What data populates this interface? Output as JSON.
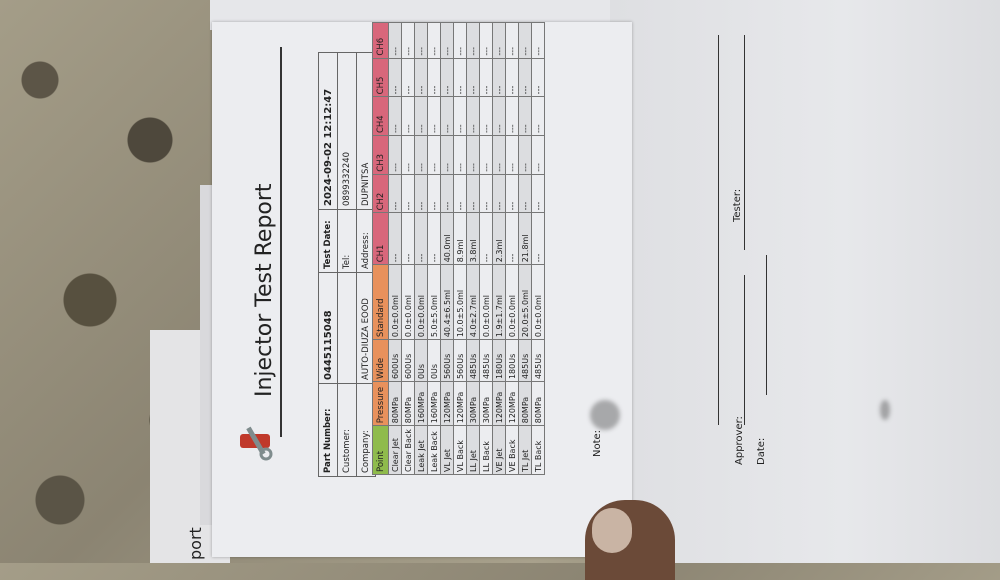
{
  "report": {
    "title": "Injector Test Report",
    "info": {
      "part_number_label": "Part Number:",
      "part_number": "0445115048",
      "test_date_label": "Test Date:",
      "test_date": "2024-09-02 12:12:47",
      "customer_label": "Customer:",
      "customer": "",
      "tel_label": "Tel:",
      "tel": "0899332240",
      "company_label": "Company:",
      "company": "AUTO-DIUZA EOOD",
      "address_label": "Address:",
      "address": "DUPNITSA"
    },
    "table": {
      "headers": [
        "Point",
        "Pressure",
        "Wide",
        "Standard",
        "CH1",
        "CH2",
        "CH3",
        "CH4",
        "CH5",
        "CH6"
      ],
      "header_colors": [
        "#8fbb4c",
        "#e8915c",
        "#e8915c",
        "#e8915c",
        "#d8677b",
        "#d8677b",
        "#d8677b",
        "#d8677b",
        "#d8677b",
        "#d8677b"
      ],
      "rows": [
        [
          "Clear Jet",
          "80MPa",
          "600Us",
          "0.0±0.0ml",
          "---",
          "---",
          "---",
          "---",
          "---",
          "---"
        ],
        [
          "Clear Back",
          "80MPa",
          "600Us",
          "0.0±0.0ml",
          "---",
          "---",
          "---",
          "---",
          "---",
          "---"
        ],
        [
          "Leak Jet",
          "160MPa",
          "0Us",
          "0.0±0.0ml",
          "---",
          "---",
          "---",
          "---",
          "---",
          "---"
        ],
        [
          "Leak Back",
          "160MPa",
          "0Us",
          "5.0±5.0ml",
          "---",
          "---",
          "---",
          "---",
          "---",
          "---"
        ],
        [
          "VL Jet",
          "120MPa",
          "560Us",
          "40.4±6.5ml",
          "40.0ml",
          "---",
          "---",
          "---",
          "---",
          "---"
        ],
        [
          "VL Back",
          "120MPa",
          "560Us",
          "10.0±5.0ml",
          "8.9ml",
          "---",
          "---",
          "---",
          "---",
          "---"
        ],
        [
          "LL Jet",
          "30MPa",
          "485Us",
          "4.0±2.7ml",
          "3.8ml",
          "---",
          "---",
          "---",
          "---",
          "---"
        ],
        [
          "LL Back",
          "30MPa",
          "485Us",
          "0.0±0.0ml",
          "---",
          "---",
          "---",
          "---",
          "---",
          "---"
        ],
        [
          "VE Jet",
          "120MPa",
          "180Us",
          "1.9±1.7ml",
          "2.3ml",
          "---",
          "---",
          "---",
          "---",
          "---"
        ],
        [
          "VE Back",
          "120MPa",
          "180Us",
          "0.0±0.0ml",
          "---",
          "---",
          "---",
          "---",
          "---",
          "---"
        ],
        [
          "TL Jet",
          "80MPa",
          "485Us",
          "20.0±5.0ml",
          "21.8ml",
          "---",
          "---",
          "---",
          "---",
          "---"
        ],
        [
          "TL Back",
          "80MPa",
          "485Us",
          "0.0±0.0ml",
          "---",
          "---",
          "---",
          "---",
          "---",
          "---"
        ]
      ]
    },
    "note_label": "Note:"
  },
  "signoff": {
    "approver_label": "Approver:",
    "date_label": "Date:",
    "tester_label": "Tester:"
  },
  "under_page_text": "port"
}
